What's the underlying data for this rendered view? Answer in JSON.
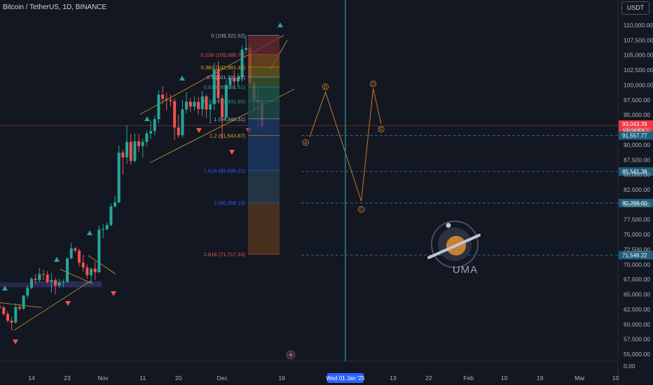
{
  "header": {
    "symbol_title": "Bitcoin / TetherUS, 1D, BINANCE",
    "currency_button": "USDT"
  },
  "colors": {
    "background": "#131722",
    "up": "#26a69a",
    "down": "#ef5350",
    "wave": "#c67a2c",
    "fib_band": "#b08c3c",
    "target": "#2e7da6",
    "price_badge": "#f23645"
  },
  "chart_data": {
    "type": "candlestick",
    "y_axis": {
      "min": 53000,
      "max": 112000,
      "ticks": [
        "110,000.00",
        "107,500.00",
        "105,000.00",
        "102,500.00",
        "100,000.00",
        "97,500.00",
        "95,000.00",
        "92,500.00",
        "90,000.00",
        "87,500.00",
        "85,000.00",
        "82,500.00",
        "80,000.00",
        "77,500.00",
        "75,000.00",
        "72,500.00",
        "70,000.00",
        "67,500.00",
        "65,000.00",
        "62,500.00",
        "60,000.00",
        "57,500.00",
        "55,000.00"
      ],
      "tick_values": [
        110000,
        107500,
        105000,
        102500,
        100000,
        97500,
        95000,
        92500,
        90000,
        87500,
        85000,
        82500,
        80000,
        77500,
        75000,
        72500,
        70000,
        67500,
        65000,
        62500,
        60000,
        57500,
        55000
      ],
      "bottom_tick": "0.00"
    },
    "x_axis": {
      "ticks": [
        {
          "label": "14",
          "date": "2024-10-14"
        },
        {
          "label": "23",
          "date": "2024-10-23"
        },
        {
          "label": "Nov",
          "date": "2024-11-01"
        },
        {
          "label": "11",
          "date": "2024-11-11"
        },
        {
          "label": "20",
          "date": "2024-11-20"
        },
        {
          "label": "Dec",
          "date": "2024-12-01"
        },
        {
          "label": "16",
          "date": "2024-12-16"
        },
        {
          "label": "Wed 01 Jan '25",
          "date": "2025-01-01",
          "highlight": true
        },
        {
          "label": "13",
          "date": "2025-01-13"
        },
        {
          "label": "22",
          "date": "2025-01-22"
        },
        {
          "label": "Feb",
          "date": "2025-02-01"
        },
        {
          "label": "10",
          "date": "2025-02-10"
        },
        {
          "label": "19",
          "date": "2025-02-19"
        },
        {
          "label": "Mar",
          "date": "2025-03-01"
        },
        {
          "label": "10",
          "date": "2025-03-10"
        }
      ]
    },
    "candles_start_date": "2024-10-04",
    "candles": [
      [
        62000,
        62800,
        61600,
        62400
      ],
      [
        62400,
        63300,
        62100,
        63000
      ],
      [
        63000,
        64200,
        62400,
        62800
      ],
      [
        62800,
        63100,
        61500,
        61700
      ],
      [
        61700,
        62200,
        60300,
        60600
      ],
      [
        60600,
        61200,
        59000,
        60300
      ],
      [
        60300,
        63500,
        60100,
        62900
      ],
      [
        62900,
        63400,
        62300,
        62600
      ],
      [
        62600,
        64900,
        62400,
        64800
      ],
      [
        64800,
        66500,
        64300,
        66100
      ],
      [
        66100,
        67900,
        65800,
        67600
      ],
      [
        67600,
        68400,
        66800,
        67400
      ],
      [
        67400,
        69400,
        67100,
        68400
      ],
      [
        68400,
        69100,
        67400,
        68300
      ],
      [
        68300,
        68900,
        66800,
        67100
      ],
      [
        67100,
        68600,
        65300,
        67400
      ],
      [
        67400,
        67700,
        65000,
        66500
      ],
      [
        66500,
        67600,
        66100,
        67000
      ],
      [
        67000,
        67500,
        66200,
        67100
      ],
      [
        67100,
        71200,
        66900,
        71000
      ],
      [
        71000,
        73600,
        70900,
        72700
      ],
      [
        72700,
        72900,
        72000,
        72300
      ],
      [
        72300,
        72700,
        69700,
        70300
      ],
      [
        70300,
        71600,
        68800,
        69500
      ],
      [
        69500,
        70000,
        67600,
        68200
      ],
      [
        68200,
        69400,
        66900,
        69300
      ],
      [
        69300,
        70500,
        67400,
        68700
      ],
      [
        68700,
        76500,
        68600,
        75800
      ],
      [
        75800,
        76800,
        74400,
        75900
      ],
      [
        75900,
        77000,
        75700,
        76600
      ],
      [
        76600,
        80200,
        76400,
        79700
      ],
      [
        79700,
        81500,
        79500,
        80400
      ],
      [
        80400,
        89900,
        80200,
        88700
      ],
      [
        88700,
        89200,
        85000,
        87900
      ],
      [
        87900,
        93300,
        86800,
        90500
      ],
      [
        90500,
        91800,
        86700,
        87300
      ],
      [
        87300,
        91900,
        87000,
        90600
      ],
      [
        90600,
        91800,
        88800,
        89800
      ],
      [
        89800,
        91000,
        87800,
        90500
      ],
      [
        90500,
        92400,
        89700,
        91900
      ],
      [
        91900,
        94000,
        91000,
        92300
      ],
      [
        92300,
        94900,
        91600,
        94300
      ],
      [
        94300,
        99100,
        93600,
        98400
      ],
      [
        98400,
        99800,
        96800,
        97700
      ],
      [
        97700,
        98700,
        95800,
        97500
      ],
      [
        97500,
        98400,
        96400,
        97300
      ],
      [
        97300,
        97800,
        90800,
        92900
      ],
      [
        92900,
        95000,
        91200,
        91600
      ],
      [
        91600,
        97500,
        91200,
        95900
      ],
      [
        95900,
        98800,
        95300,
        97200
      ],
      [
        97200,
        97800,
        95500,
        96400
      ],
      [
        96400,
        98100,
        95700,
        97200
      ],
      [
        97200,
        98000,
        95000,
        96000
      ],
      [
        96000,
        99000,
        94800,
        98100
      ],
      [
        98100,
        98400,
        94500,
        95900
      ],
      [
        95900,
        97100,
        93500,
        96800
      ],
      [
        96800,
        103700,
        95800,
        102600
      ],
      [
        102600,
        104000,
        97000,
        97800
      ],
      [
        97800,
        98400,
        91000,
        94600
      ],
      [
        94600,
        100800,
        94200,
        100000
      ],
      [
        100000,
        101400,
        99300,
        101100
      ],
      [
        101100,
        102400,
        99300,
        100600
      ],
      [
        100600,
        102000,
        99600,
        101300
      ],
      [
        101300,
        106600,
        100500,
        105900
      ],
      [
        105900,
        108300,
        105300,
        106200
      ],
      [
        106200,
        106700,
        100000,
        100300
      ],
      [
        100300,
        100600,
        95500,
        97500
      ],
      [
        97500,
        99400,
        92500,
        97100
      ],
      [
        97100,
        97700,
        92600,
        93040
      ]
    ],
    "fibonacci": [
      {
        "label": "0 (108,322.52)",
        "value": 108322.52,
        "color": "#b2b5be"
      },
      {
        "label": "0.236 (105,088.72)",
        "value": 105088.72,
        "color": "#ef5350"
      },
      {
        "label": "0.382 (102,981.32)",
        "value": 102981.32,
        "color": "#f7a21b"
      },
      {
        "label": "0.5 (101,331.42)",
        "value": 101331.42,
        "color": "#b2b5be"
      },
      {
        "label": "0.618 (99,681.51)",
        "value": 99681.51,
        "color": "#26a69a"
      },
      {
        "label": "0.786 (97,331.50)",
        "value": 97331.5,
        "color": "#26a69a"
      },
      {
        "label": "1 (94,340.31)",
        "value": 94340.31,
        "color": "#b2b5be"
      },
      {
        "label": "1.2 (91,543.87)",
        "value": 91543.87,
        "color": "#f7a21b"
      },
      {
        "label": "1.618 (85,699.31)",
        "value": 85699.31,
        "color": "#2962ff"
      },
      {
        "label": "2 (80,358.10)",
        "value": 80358.1,
        "color": "#2962ff"
      },
      {
        "label": "2.618 (71,717.10)",
        "value": 71717.1,
        "color": "#ef5350"
      }
    ],
    "wave_path": [
      {
        "label": "",
        "date": "2024-12-23",
        "value": 91300
      },
      {
        "label": "B",
        "date": "2024-12-27",
        "value": 98800
      },
      {
        "label": "",
        "date": "2025-01-05",
        "value": 80600
      },
      {
        "label": "D",
        "date": "2025-01-08",
        "value": 99400
      },
      {
        "label": "",
        "date": "2025-01-10",
        "value": 93500
      }
    ],
    "wave_labels": [
      {
        "label": "A",
        "date": "2024-12-22",
        "value": 90400
      },
      {
        "label": "B",
        "date": "2024-12-27",
        "value": 99700
      },
      {
        "label": "C",
        "date": "2025-01-05",
        "value": 79200
      },
      {
        "label": "D",
        "date": "2025-01-08",
        "value": 100200
      },
      {
        "label": "E",
        "date": "2025-01-10",
        "value": 92600
      }
    ],
    "price_levels": [
      {
        "label": "93,043.39",
        "value": 93043.39,
        "kind": "current",
        "countdown": "12:04:53"
      },
      {
        "label": "91,557.77",
        "value": 91557.77,
        "kind": "target"
      },
      {
        "label": "85,541.38",
        "value": 85541.38,
        "kind": "target"
      },
      {
        "label": "80,268.60",
        "value": 80268.6,
        "kind": "target"
      },
      {
        "label": "71,548.22",
        "value": 71548.22,
        "kind": "target"
      }
    ],
    "logo_text": "UMA"
  }
}
